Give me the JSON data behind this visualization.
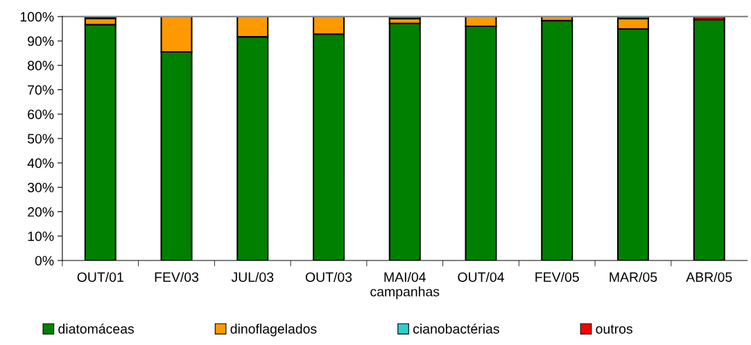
{
  "chart_data": {
    "type": "bar",
    "stacked": true,
    "xlabel": "campanhas",
    "categories": [
      "OUT/01",
      "FEV/03",
      "JUL/03",
      "OUT/03",
      "MAI/04",
      "OUT/04",
      "FEV/05",
      "MAR/05",
      "ABR/05"
    ],
    "series": [
      {
        "name": "diatomáceas",
        "color": "#008000",
        "values": [
          96.7,
          85.5,
          91.7,
          92.8,
          97.2,
          96.0,
          98.3,
          94.9,
          98.8
        ]
      },
      {
        "name": "dinoflagelados",
        "color": "#ff9900",
        "values": [
          2.6,
          14.5,
          8.3,
          7.2,
          1.9,
          4.0,
          1.7,
          4.2,
          0.0
        ]
      },
      {
        "name": "cianobactérias",
        "color": "#33cccc",
        "values": [
          0.0,
          0.0,
          0.0,
          0.0,
          0.0,
          0.0,
          0.0,
          0.0,
          0.0
        ]
      },
      {
        "name": "outros",
        "color": "#ff0000",
        "values": [
          0.7,
          0.0,
          0.0,
          0.0,
          0.9,
          0.0,
          null,
          0.9,
          1.2
        ]
      }
    ],
    "ylim": [
      0,
      100
    ],
    "yticks": [
      {
        "value": 0,
        "label": "0%"
      },
      {
        "value": 10,
        "label": "10%"
      },
      {
        "value": 20,
        "label": "20%"
      },
      {
        "value": 30,
        "label": "30%"
      },
      {
        "value": 40,
        "label": "40%"
      },
      {
        "value": 50,
        "label": "50%"
      },
      {
        "value": 60,
        "label": "60%"
      },
      {
        "value": 70,
        "label": "70%"
      },
      {
        "value": 80,
        "label": "80%"
      },
      {
        "value": 90,
        "label": "90%"
      },
      {
        "value": 100,
        "label": "100%"
      }
    ],
    "grid": false,
    "legend": "bottom"
  }
}
